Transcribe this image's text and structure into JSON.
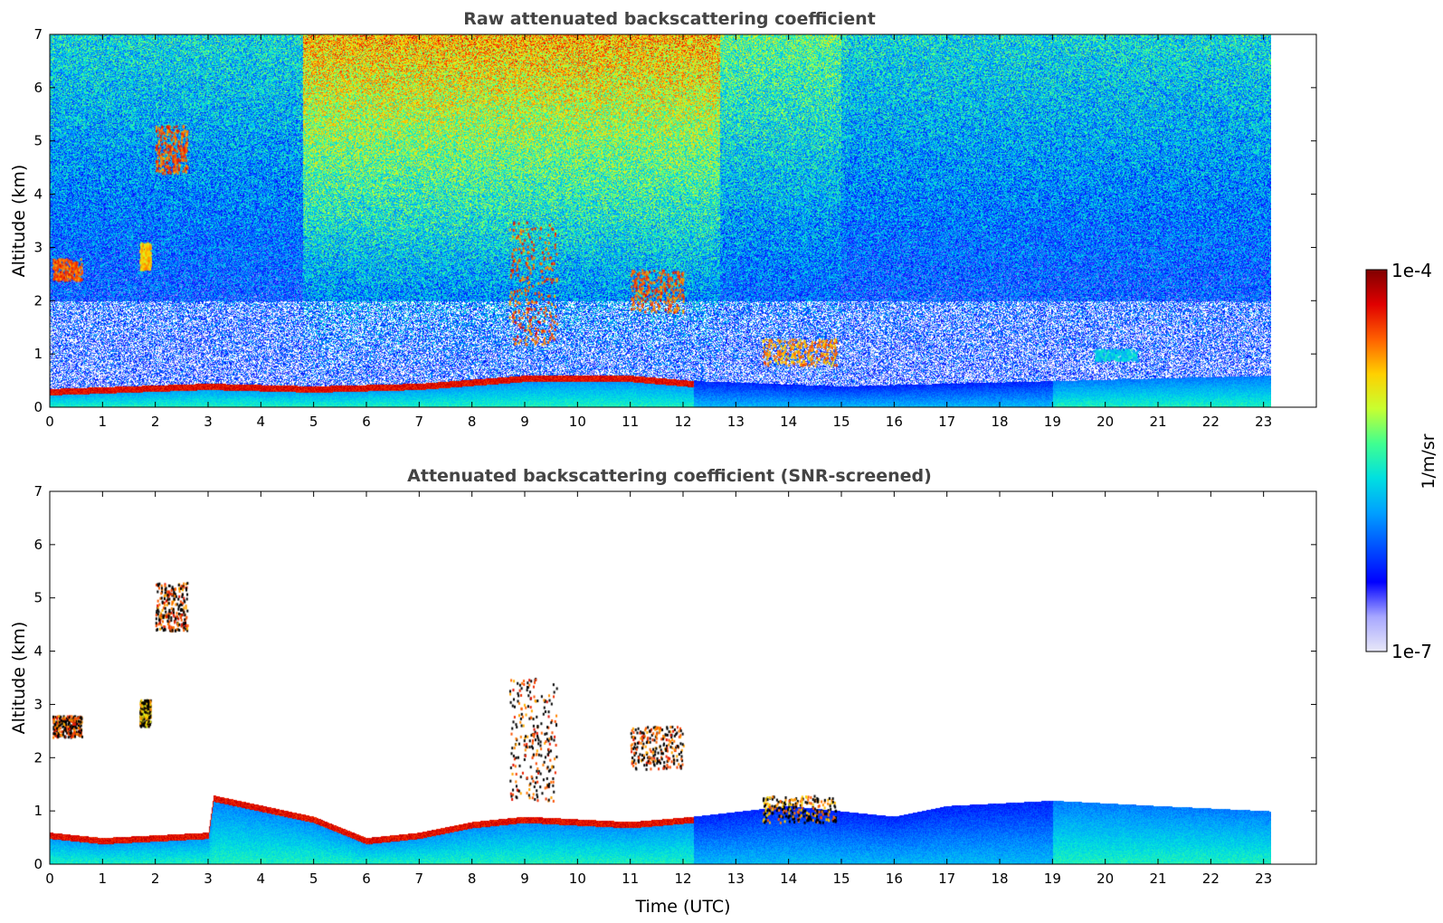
{
  "colors": {
    "colormap": [
      "#e8e8f8",
      "#a7a7ff",
      "#0000ff",
      "#0050ff",
      "#00a0ff",
      "#00e0e0",
      "#40ff90",
      "#c8ff30",
      "#ffd000",
      "#ff6000",
      "#e00000",
      "#800000"
    ],
    "screened_black": "#000000",
    "title_text": "#444444"
  },
  "chart_data": [
    {
      "type": "heatmap",
      "title": "Raw attenuated backscattering coefficient",
      "xlabel": "",
      "ylabel": "Altitude (km)",
      "xlim": [
        0,
        24
      ],
      "ylim": [
        0,
        7
      ],
      "x_ticks": [
        "0",
        "1",
        "2",
        "3",
        "4",
        "5",
        "6",
        "7",
        "8",
        "9",
        "10",
        "11",
        "12",
        "13",
        "14",
        "15",
        "16",
        "17",
        "18",
        "19",
        "20",
        "21",
        "22",
        "23"
      ],
      "y_ticks": [
        "0",
        "1",
        "2",
        "3",
        "4",
        "5",
        "6",
        "7"
      ],
      "data_end_time": 23.15,
      "boundary_layer_top_km": [
        [
          0,
          0.35
        ],
        [
          3,
          0.45
        ],
        [
          5,
          0.4
        ],
        [
          7,
          0.45
        ],
        [
          9,
          0.6
        ],
        [
          11,
          0.6
        ],
        [
          12.2,
          0.5
        ],
        [
          15,
          0.4
        ],
        [
          23.15,
          0.6
        ]
      ],
      "features": [
        {
          "t0": 0.05,
          "t1": 0.6,
          "z0": 2.4,
          "z1": 2.8,
          "level": 0.9
        },
        {
          "t0": 2.0,
          "t1": 2.6,
          "z0": 4.4,
          "z1": 5.3,
          "level": 0.9
        },
        {
          "t0": 1.7,
          "t1": 1.9,
          "z0": 2.6,
          "z1": 3.1,
          "level": 0.8
        },
        {
          "t0": 8.7,
          "t1": 9.6,
          "z0": 1.2,
          "z1": 3.5,
          "level": 0.9
        },
        {
          "t0": 11.0,
          "t1": 12.0,
          "z0": 1.8,
          "z1": 2.6,
          "level": 0.9
        },
        {
          "t0": 13.5,
          "t1": 14.9,
          "z0": 0.8,
          "z1": 1.3,
          "level": 0.85
        },
        {
          "t0": 19.8,
          "t1": 20.6,
          "z0": 0.9,
          "z1": 1.1,
          "level": 0.5
        }
      ]
    },
    {
      "type": "heatmap",
      "title": "Attenuated backscattering coefficient (SNR-screened)",
      "xlabel": "Time (UTC)",
      "ylabel": "Altitude (km)",
      "xlim": [
        0,
        24
      ],
      "ylim": [
        0,
        7
      ],
      "x_ticks": [
        "0",
        "1",
        "2",
        "3",
        "4",
        "5",
        "6",
        "7",
        "8",
        "9",
        "10",
        "11",
        "12",
        "13",
        "14",
        "15",
        "16",
        "17",
        "18",
        "19",
        "20",
        "21",
        "22",
        "23"
      ],
      "y_ticks": [
        "0",
        "1",
        "2",
        "3",
        "4",
        "5",
        "6",
        "7"
      ],
      "data_end_time": 23.15,
      "screened_top_km": [
        [
          0,
          0.6
        ],
        [
          1,
          0.5
        ],
        [
          3,
          0.6
        ],
        [
          3.1,
          1.3
        ],
        [
          5,
          0.9
        ],
        [
          6,
          0.5
        ],
        [
          7,
          0.6
        ],
        [
          8,
          0.8
        ],
        [
          9,
          0.9
        ],
        [
          11,
          0.8
        ],
        [
          12.2,
          0.9
        ],
        [
          14,
          1.1
        ],
        [
          15,
          1.0
        ],
        [
          16,
          0.9
        ],
        [
          17,
          1.1
        ],
        [
          19,
          1.2
        ],
        [
          21,
          1.1
        ],
        [
          23.15,
          1.0
        ]
      ],
      "features": [
        {
          "t0": 0.05,
          "t1": 0.6,
          "z0": 2.4,
          "z1": 2.8,
          "level": 0.9
        },
        {
          "t0": 2.0,
          "t1": 2.6,
          "z0": 4.4,
          "z1": 5.3,
          "level": 0.9
        },
        {
          "t0": 1.7,
          "t1": 1.9,
          "z0": 2.6,
          "z1": 3.1,
          "level": 0.8
        },
        {
          "t0": 8.7,
          "t1": 9.6,
          "z0": 1.2,
          "z1": 3.5,
          "level": 0.9
        },
        {
          "t0": 11.0,
          "t1": 12.0,
          "z0": 1.8,
          "z1": 2.6,
          "level": 0.9
        },
        {
          "t0": 13.5,
          "t1": 14.9,
          "z0": 0.8,
          "z1": 1.3,
          "level": 0.85
        }
      ]
    }
  ],
  "colorbar": {
    "max_label": "1e-4",
    "min_label": "1e-7",
    "unit_label": "1/m/sr"
  }
}
